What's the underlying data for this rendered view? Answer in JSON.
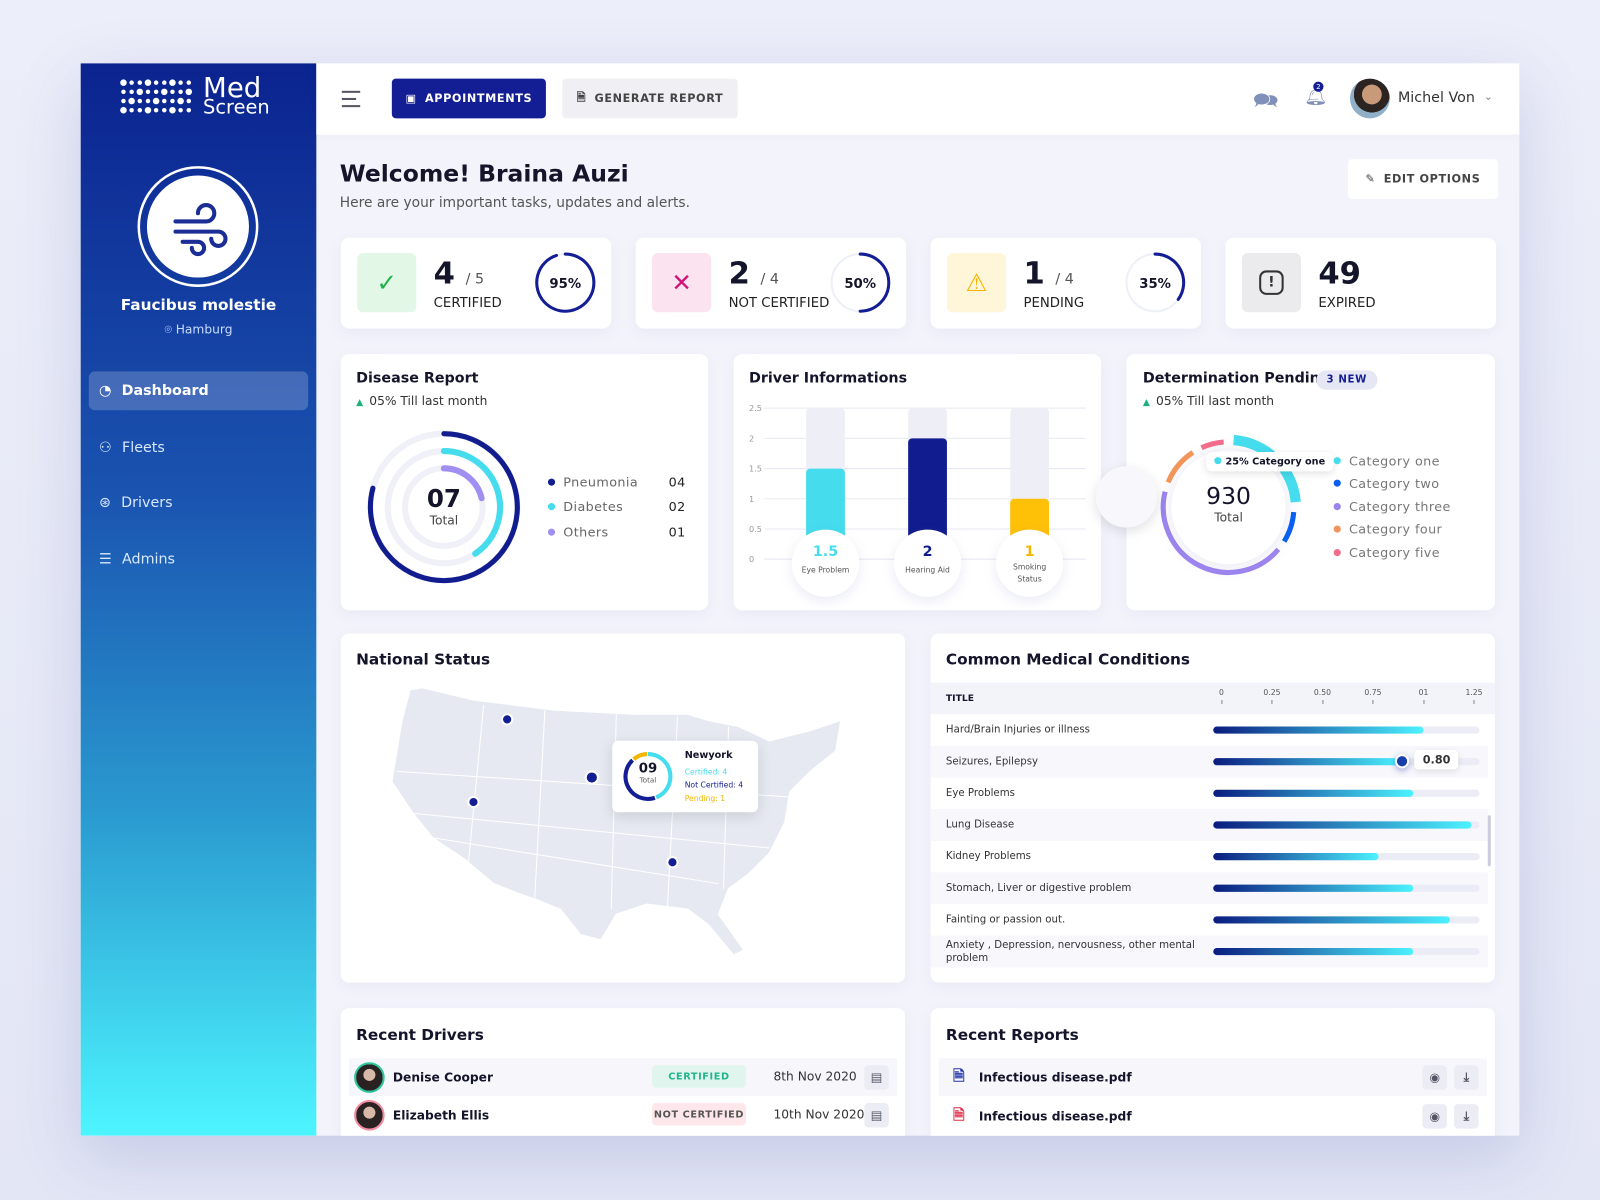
{
  "brand": {
    "name_line1": "Med",
    "name_line2": "Screen"
  },
  "profile": {
    "name": "Faucibus molestie",
    "location": "Hamburg"
  },
  "sidebar": {
    "items": [
      {
        "label": "Dashboard",
        "icon": "gauge-icon",
        "active": true
      },
      {
        "label": "Fleets",
        "icon": "users-icon"
      },
      {
        "label": "Drivers",
        "icon": "steering-wheel-icon"
      },
      {
        "label": "Admins",
        "icon": "sliders-icon"
      }
    ]
  },
  "topbar": {
    "appointments_label": "APPOINTMENTS",
    "generate_report_label": "GENERATE REPORT",
    "notification_count": "2",
    "user_name": "Michel Von"
  },
  "welcome": {
    "title": "Welcome! Braina Auzi",
    "subtitle": "Here are your important tasks, updates and alerts.",
    "edit_options_label": "EDIT OPTIONS"
  },
  "stats": [
    {
      "value": "4",
      "total": "/ 5",
      "label": "CERTIFIED",
      "percent": 95,
      "percent_label": "95%",
      "icon": "check-icon",
      "color": "#22b24c",
      "bg": "#e3f7e6"
    },
    {
      "value": "2",
      "total": "/ 4",
      "label": "NOT CERTIFIED",
      "percent": 50,
      "percent_label": "50%",
      "icon": "x-icon",
      "color": "#d0157a",
      "bg": "#fbe3ef"
    },
    {
      "value": "1",
      "total": "/ 4",
      "label": "PENDING",
      "percent": 35,
      "percent_label": "35%",
      "icon": "warning-icon",
      "color": "#f2b600",
      "bg": "#fff5d9"
    },
    {
      "value": "49",
      "total": "",
      "label": "EXPIRED",
      "icon": "alert-octagon-icon",
      "color": "#333",
      "bg": "#ebebee"
    }
  ],
  "disease_report": {
    "title": "Disease Report",
    "trend": "05% Till last month",
    "total": "07",
    "total_label": "Total",
    "items": [
      {
        "label": "Pneumonia",
        "value": "04",
        "color": "#111c8e"
      },
      {
        "label": "Diabetes",
        "value": "02",
        "color": "#45dcee"
      },
      {
        "label": "Others",
        "value": "01",
        "color": "#a08ef0"
      }
    ]
  },
  "chart_data": [
    {
      "type": "bar",
      "title": "Driver Informations",
      "categories": [
        "Eye Problem",
        "Hearing Aid",
        "Smoking Status"
      ],
      "values": [
        1.5,
        2,
        1
      ],
      "value_labels": [
        "1.5",
        "2",
        "1"
      ],
      "colors": [
        "#45dcee",
        "#111c8e",
        "#ffc107"
      ],
      "ylim": [
        0,
        2.5
      ],
      "yticks": [
        "0",
        "0.5",
        "1",
        "1.5",
        "2",
        "2.5"
      ],
      "grid": true
    },
    {
      "type": "pie",
      "title": "Determination Pending",
      "categories": [
        "Category one",
        "Category two",
        "Category three",
        "Category four",
        "Category five"
      ],
      "values": [
        25,
        10,
        45,
        12,
        8
      ],
      "colors": [
        "#45dcee",
        "#0a5ef0",
        "#9b84ee",
        "#f2955a",
        "#f26d8c"
      ],
      "total": "930",
      "total_label": "Total",
      "tooltip": "25% Category one"
    }
  ],
  "determination": {
    "badge": "3 NEW",
    "trend": "05% Till last month"
  },
  "national_status": {
    "title": "National Status",
    "tooltip": {
      "city": "Newyork",
      "total": "09",
      "total_label": "Total",
      "certified": "Certified: 4",
      "not_certified": "Not Certified: 4",
      "pending": "Pending: 1"
    }
  },
  "medical_conditions": {
    "title": "Common Medical Conditions",
    "column_title": "TITLE",
    "axis_ticks": [
      "0",
      "0.25",
      "0.50",
      "0.75",
      "01",
      "1.25"
    ],
    "highlight_value": "0.80",
    "rows": [
      {
        "label": "Hard/Brain Injuries or illness",
        "value": 0.79
      },
      {
        "label": "Seizures, Epilepsy",
        "value": 0.71
      },
      {
        "label": "Eye Problems",
        "value": 0.75
      },
      {
        "label": "Lung Disease",
        "value": 0.97
      },
      {
        "label": "Kidney Problems",
        "value": 0.62
      },
      {
        "label": "Stomach, Liver or digestive problem",
        "value": 0.75
      },
      {
        "label": "Fainting or passion out.",
        "value": 0.89
      },
      {
        "label": "Anxiety , Depression, nervousness, other mental problem",
        "value": 0.75
      }
    ]
  },
  "recent_drivers": {
    "title": "Recent Drivers",
    "rows": [
      {
        "name": "Denise Cooper",
        "status": "CERTIFIED",
        "date": "8th Nov 2020"
      },
      {
        "name": "Elizabeth Ellis",
        "status": "NOT CERTIFIED",
        "date": "10th Nov 2020"
      }
    ]
  },
  "recent_reports": {
    "title": "Recent Reports",
    "rows": [
      {
        "name": "Infectious disease.pdf",
        "color": "#2535a8"
      },
      {
        "name": "Infectious disease.pdf",
        "color": "#e0304a"
      }
    ]
  }
}
